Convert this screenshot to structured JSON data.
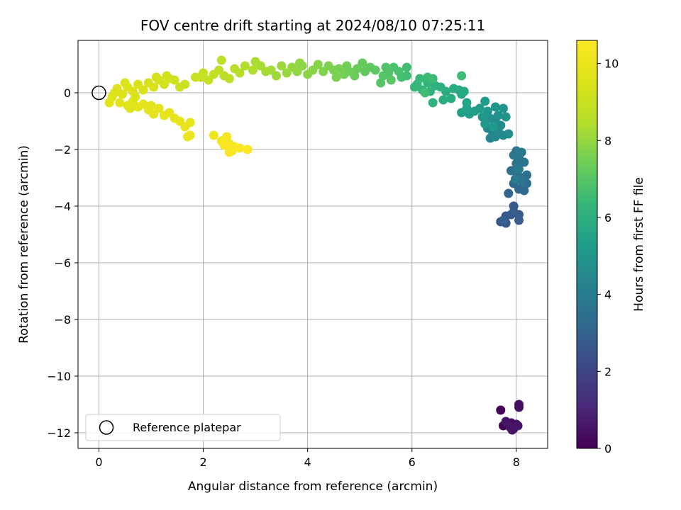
{
  "chart_data": {
    "type": "scatter",
    "title": "FOV centre drift starting at 2024/08/10 07:25:11",
    "xlabel": "Angular distance from reference (arcmin)",
    "ylabel": "Rotation from reference (arcmin)",
    "xlim": [
      -0.4,
      8.6
    ],
    "ylim": [
      -12.55,
      1.85
    ],
    "xticks": [
      0,
      2,
      4,
      6,
      8
    ],
    "yticks": [
      0,
      -2,
      -4,
      -6,
      -8,
      -10,
      -12
    ],
    "grid": true,
    "colorbar": {
      "label": "Hours from first FF file",
      "colormap": "viridis",
      "range": [
        0,
        10.6
      ],
      "ticks": [
        0,
        2,
        4,
        6,
        8,
        10
      ]
    },
    "legend": {
      "placement": "lower-left",
      "entries": [
        "Reference platepar"
      ]
    },
    "reference_point": {
      "x": 0,
      "y": 0
    },
    "points": [
      {
        "x": 7.7,
        "y": -11.2,
        "t": 0.05
      },
      {
        "x": 7.75,
        "y": -11.75,
        "t": 0.1
      },
      {
        "x": 7.85,
        "y": -11.7,
        "t": 0.15
      },
      {
        "x": 7.9,
        "y": -11.65,
        "t": 0.2
      },
      {
        "x": 7.95,
        "y": -11.85,
        "t": 0.25
      },
      {
        "x": 8.0,
        "y": -11.7,
        "t": 0.3
      },
      {
        "x": 8.05,
        "y": -11.1,
        "t": 0.35
      },
      {
        "x": 8.05,
        "y": -11.0,
        "t": 0.4
      },
      {
        "x": 7.92,
        "y": -11.9,
        "t": 0.45
      },
      {
        "x": 7.8,
        "y": -11.6,
        "t": 0.5
      },
      {
        "x": 8.03,
        "y": -11.75,
        "t": 0.55
      },
      {
        "x": 7.88,
        "y": -11.8,
        "t": 0.6
      },
      {
        "x": 7.7,
        "y": -4.55,
        "t": 2.5
      },
      {
        "x": 7.8,
        "y": -4.6,
        "t": 2.55
      },
      {
        "x": 7.8,
        "y": -4.35,
        "t": 2.6
      },
      {
        "x": 7.9,
        "y": -4.3,
        "t": 2.65
      },
      {
        "x": 7.95,
        "y": -4.0,
        "t": 2.7
      },
      {
        "x": 8.05,
        "y": -4.3,
        "t": 2.75
      },
      {
        "x": 8.05,
        "y": -4.5,
        "t": 2.8
      },
      {
        "x": 7.95,
        "y": -4.2,
        "t": 2.85
      },
      {
        "x": 7.75,
        "y": -4.5,
        "t": 2.9
      },
      {
        "x": 7.85,
        "y": -3.55,
        "t": 3.1
      },
      {
        "x": 7.95,
        "y": -3.2,
        "t": 3.2
      },
      {
        "x": 8.05,
        "y": -3.4,
        "t": 3.25
      },
      {
        "x": 8.15,
        "y": -3.45,
        "t": 3.3
      },
      {
        "x": 8.2,
        "y": -3.2,
        "t": 3.35
      },
      {
        "x": 8.2,
        "y": -2.9,
        "t": 3.4
      },
      {
        "x": 8.1,
        "y": -3.0,
        "t": 3.45
      },
      {
        "x": 8.0,
        "y": -2.8,
        "t": 3.5
      },
      {
        "x": 7.9,
        "y": -2.75,
        "t": 3.55
      },
      {
        "x": 8.0,
        "y": -2.5,
        "t": 3.6
      },
      {
        "x": 8.15,
        "y": -2.45,
        "t": 3.65
      },
      {
        "x": 8.05,
        "y": -2.3,
        "t": 3.7
      },
      {
        "x": 7.95,
        "y": -2.2,
        "t": 3.75
      },
      {
        "x": 8.0,
        "y": -2.05,
        "t": 3.8
      },
      {
        "x": 8.1,
        "y": -2.1,
        "t": 3.85
      },
      {
        "x": 8.05,
        "y": -2.7,
        "t": 3.9
      },
      {
        "x": 7.98,
        "y": -3.05,
        "t": 3.95
      },
      {
        "x": 8.12,
        "y": -3.15,
        "t": 3.6
      },
      {
        "x": 7.5,
        "y": -1.6,
        "t": 4.3
      },
      {
        "x": 7.55,
        "y": -1.4,
        "t": 4.35
      },
      {
        "x": 7.45,
        "y": -1.25,
        "t": 4.4
      },
      {
        "x": 7.6,
        "y": -1.55,
        "t": 4.45
      },
      {
        "x": 7.65,
        "y": -1.3,
        "t": 4.5
      },
      {
        "x": 7.75,
        "y": -1.5,
        "t": 4.55
      },
      {
        "x": 7.85,
        "y": -1.45,
        "t": 4.6
      },
      {
        "x": 7.7,
        "y": -1.15,
        "t": 4.65
      },
      {
        "x": 7.6,
        "y": -1.0,
        "t": 4.7
      },
      {
        "x": 7.5,
        "y": -0.9,
        "t": 4.75
      },
      {
        "x": 7.65,
        "y": -0.8,
        "t": 4.8
      },
      {
        "x": 7.8,
        "y": -0.85,
        "t": 4.85
      },
      {
        "x": 7.75,
        "y": -0.55,
        "t": 4.9
      },
      {
        "x": 7.6,
        "y": -0.5,
        "t": 4.95
      },
      {
        "x": 7.45,
        "y": -0.65,
        "t": 5.0
      },
      {
        "x": 7.35,
        "y": -0.85,
        "t": 5.05
      },
      {
        "x": 7.4,
        "y": -1.1,
        "t": 5.1
      },
      {
        "x": 7.55,
        "y": -1.2,
        "t": 5.15
      },
      {
        "x": 7.4,
        "y": -0.3,
        "t": 5.2
      },
      {
        "x": 7.3,
        "y": -0.55,
        "t": 5.25
      },
      {
        "x": 7.2,
        "y": -0.65,
        "t": 5.3
      },
      {
        "x": 7.1,
        "y": -0.75,
        "t": 5.35
      },
      {
        "x": 6.95,
        "y": -0.7,
        "t": 5.4
      },
      {
        "x": 7.05,
        "y": -0.55,
        "t": 5.45
      },
      {
        "x": 7.05,
        "y": -0.35,
        "t": 5.6
      },
      {
        "x": 6.95,
        "y": -0.05,
        "t": 5.65
      },
      {
        "x": 7.0,
        "y": 0.05,
        "t": 5.7
      },
      {
        "x": 6.9,
        "y": 0.1,
        "t": 5.75
      },
      {
        "x": 6.8,
        "y": 0.15,
        "t": 5.8
      },
      {
        "x": 6.75,
        "y": -0.2,
        "t": 5.85
      },
      {
        "x": 6.65,
        "y": 0.05,
        "t": 5.9
      },
      {
        "x": 6.6,
        "y": -0.25,
        "t": 5.95
      },
      {
        "x": 6.55,
        "y": 0.2,
        "t": 6.0
      },
      {
        "x": 6.45,
        "y": 0.25,
        "t": 6.05
      },
      {
        "x": 6.4,
        "y": -0.35,
        "t": 6.1
      },
      {
        "x": 6.35,
        "y": 0.05,
        "t": 6.15
      },
      {
        "x": 6.3,
        "y": 0.35,
        "t": 6.2
      },
      {
        "x": 6.2,
        "y": 0.1,
        "t": 6.25
      },
      {
        "x": 6.1,
        "y": 0.3,
        "t": 6.3
      },
      {
        "x": 6.05,
        "y": 0.2,
        "t": 6.35
      },
      {
        "x": 6.15,
        "y": 0.5,
        "t": 6.4
      },
      {
        "x": 6.3,
        "y": 0.55,
        "t": 6.45
      },
      {
        "x": 6.4,
        "y": 0.5,
        "t": 6.5
      },
      {
        "x": 6.95,
        "y": 0.6,
        "t": 6.55
      },
      {
        "x": 6.25,
        "y": 0.0,
        "t": 6.6
      },
      {
        "x": 5.9,
        "y": 0.9,
        "t": 6.65
      },
      {
        "x": 5.8,
        "y": 0.55,
        "t": 6.7
      },
      {
        "x": 5.75,
        "y": 0.75,
        "t": 6.75
      },
      {
        "x": 5.65,
        "y": 0.9,
        "t": 6.8
      },
      {
        "x": 5.55,
        "y": 0.7,
        "t": 6.85
      },
      {
        "x": 5.5,
        "y": 0.9,
        "t": 6.9
      },
      {
        "x": 5.45,
        "y": 0.6,
        "t": 6.95
      },
      {
        "x": 5.4,
        "y": 0.35,
        "t": 7.0
      },
      {
        "x": 5.6,
        "y": 0.45,
        "t": 7.05
      },
      {
        "x": 5.9,
        "y": 0.6,
        "t": 6.6
      },
      {
        "x": 5.3,
        "y": 0.8,
        "t": 7.1
      },
      {
        "x": 5.2,
        "y": 0.9,
        "t": 7.15
      },
      {
        "x": 5.1,
        "y": 0.75,
        "t": 7.2
      },
      {
        "x": 5.05,
        "y": 1.05,
        "t": 7.25
      },
      {
        "x": 4.95,
        "y": 0.85,
        "t": 7.3
      },
      {
        "x": 4.9,
        "y": 0.6,
        "t": 7.35
      },
      {
        "x": 4.8,
        "y": 0.75,
        "t": 7.4
      },
      {
        "x": 4.75,
        "y": 0.95,
        "t": 7.45
      },
      {
        "x": 4.7,
        "y": 0.65,
        "t": 7.5
      },
      {
        "x": 4.6,
        "y": 0.85,
        "t": 7.55
      },
      {
        "x": 4.5,
        "y": 0.8,
        "t": 7.6
      },
      {
        "x": 4.4,
        "y": 0.95,
        "t": 7.65
      },
      {
        "x": 4.3,
        "y": 0.75,
        "t": 7.7
      },
      {
        "x": 4.2,
        "y": 1.0,
        "t": 7.75
      },
      {
        "x": 4.1,
        "y": 0.8,
        "t": 7.8
      },
      {
        "x": 4.0,
        "y": 0.65,
        "t": 7.85
      },
      {
        "x": 3.9,
        "y": 0.95,
        "t": 7.9
      },
      {
        "x": 3.8,
        "y": 0.75,
        "t": 7.95
      },
      {
        "x": 3.7,
        "y": 0.9,
        "t": 8.0
      },
      {
        "x": 3.6,
        "y": 0.7,
        "t": 8.05
      },
      {
        "x": 3.5,
        "y": 0.95,
        "t": 8.1
      },
      {
        "x": 3.4,
        "y": 0.6,
        "t": 8.15
      },
      {
        "x": 3.3,
        "y": 0.8,
        "t": 8.2
      },
      {
        "x": 3.2,
        "y": 0.75,
        "t": 8.25
      },
      {
        "x": 3.1,
        "y": 0.95,
        "t": 8.3
      },
      {
        "x": 3.0,
        "y": 1.1,
        "t": 8.35
      },
      {
        "x": 2.95,
        "y": 0.8,
        "t": 8.4
      },
      {
        "x": 2.8,
        "y": 0.95,
        "t": 8.45
      },
      {
        "x": 2.7,
        "y": 0.7,
        "t": 8.5
      },
      {
        "x": 2.6,
        "y": 0.85,
        "t": 8.55
      },
      {
        "x": 2.5,
        "y": 0.5,
        "t": 8.6
      },
      {
        "x": 2.4,
        "y": 0.6,
        "t": 8.65
      },
      {
        "x": 2.35,
        "y": 1.15,
        "t": 8.7
      },
      {
        "x": 2.3,
        "y": 0.8,
        "t": 8.75
      },
      {
        "x": 2.2,
        "y": 0.65,
        "t": 8.8
      },
      {
        "x": 2.1,
        "y": 0.45,
        "t": 8.85
      },
      {
        "x": 2.0,
        "y": 0.7,
        "t": 8.9
      },
      {
        "x": 1.95,
        "y": 0.55,
        "t": 8.95
      },
      {
        "x": 3.85,
        "y": 1.05,
        "t": 7.9
      },
      {
        "x": 4.55,
        "y": 0.55,
        "t": 7.6
      },
      {
        "x": 1.85,
        "y": 0.55,
        "t": 9.0
      },
      {
        "x": 1.65,
        "y": 0.3,
        "t": 9.05
      },
      {
        "x": 1.55,
        "y": 0.2,
        "t": 9.1
      },
      {
        "x": 1.45,
        "y": 0.45,
        "t": 9.15
      },
      {
        "x": 1.35,
        "y": 0.5,
        "t": 9.2
      },
      {
        "x": 1.25,
        "y": 0.3,
        "t": 9.25
      },
      {
        "x": 1.15,
        "y": 0.45,
        "t": 9.3
      },
      {
        "x": 1.05,
        "y": 0.2,
        "t": 9.35
      },
      {
        "x": 0.95,
        "y": 0.35,
        "t": 9.4
      },
      {
        "x": 0.85,
        "y": 0.1,
        "t": 9.45
      },
      {
        "x": 0.75,
        "y": 0.3,
        "t": 9.5
      },
      {
        "x": 0.65,
        "y": 0.05,
        "t": 9.55
      },
      {
        "x": 0.55,
        "y": 0.2,
        "t": 9.6
      },
      {
        "x": 0.45,
        "y": -0.05,
        "t": 9.62
      },
      {
        "x": 0.35,
        "y": 0.15,
        "t": 9.64
      },
      {
        "x": 0.25,
        "y": -0.15,
        "t": 9.66
      },
      {
        "x": 0.4,
        "y": -0.35,
        "t": 9.68
      },
      {
        "x": 0.55,
        "y": -0.45,
        "t": 9.7
      },
      {
        "x": 0.65,
        "y": -0.3,
        "t": 9.72
      },
      {
        "x": 0.75,
        "y": -0.5,
        "t": 9.74
      },
      {
        "x": 0.85,
        "y": -0.4,
        "t": 9.76
      },
      {
        "x": 0.95,
        "y": -0.6,
        "t": 9.78
      },
      {
        "x": 1.05,
        "y": -0.75,
        "t": 9.8
      },
      {
        "x": 1.15,
        "y": -0.55,
        "t": 9.82
      },
      {
        "x": 1.25,
        "y": -0.8,
        "t": 9.84
      },
      {
        "x": 1.35,
        "y": -0.7,
        "t": 9.86
      },
      {
        "x": 1.45,
        "y": -0.9,
        "t": 9.88
      },
      {
        "x": 1.55,
        "y": -1.0,
        "t": 9.9
      },
      {
        "x": 1.65,
        "y": -1.2,
        "t": 9.92
      },
      {
        "x": 1.75,
        "y": -1.05,
        "t": 9.94
      },
      {
        "x": 1.7,
        "y": -1.55,
        "t": 9.96
      },
      {
        "x": 1.75,
        "y": -1.5,
        "t": 9.98
      },
      {
        "x": 0.5,
        "y": 0.35,
        "t": 9.5
      },
      {
        "x": 0.6,
        "y": -0.55,
        "t": 9.6
      },
      {
        "x": 0.3,
        "y": 0.0,
        "t": 9.58
      },
      {
        "x": 0.2,
        "y": -0.35,
        "t": 9.7
      },
      {
        "x": 1.1,
        "y": 0.55,
        "t": 9.3
      },
      {
        "x": 1.3,
        "y": 0.6,
        "t": 9.2
      },
      {
        "x": 0.7,
        "y": -0.15,
        "t": 9.5
      },
      {
        "x": 1.0,
        "y": -0.45,
        "t": 9.75
      },
      {
        "x": 2.2,
        "y": -1.5,
        "t": 10.2
      },
      {
        "x": 2.35,
        "y": -1.7,
        "t": 10.25
      },
      {
        "x": 2.45,
        "y": -1.55,
        "t": 10.3
      },
      {
        "x": 2.5,
        "y": -1.8,
        "t": 10.35
      },
      {
        "x": 2.55,
        "y": -2.05,
        "t": 10.4
      },
      {
        "x": 2.5,
        "y": -2.1,
        "t": 10.45
      },
      {
        "x": 2.6,
        "y": -1.9,
        "t": 10.5
      },
      {
        "x": 2.7,
        "y": -1.95,
        "t": 10.55
      },
      {
        "x": 2.85,
        "y": -2.0,
        "t": 10.6
      },
      {
        "x": 2.4,
        "y": -1.85,
        "t": 10.45
      }
    ]
  }
}
